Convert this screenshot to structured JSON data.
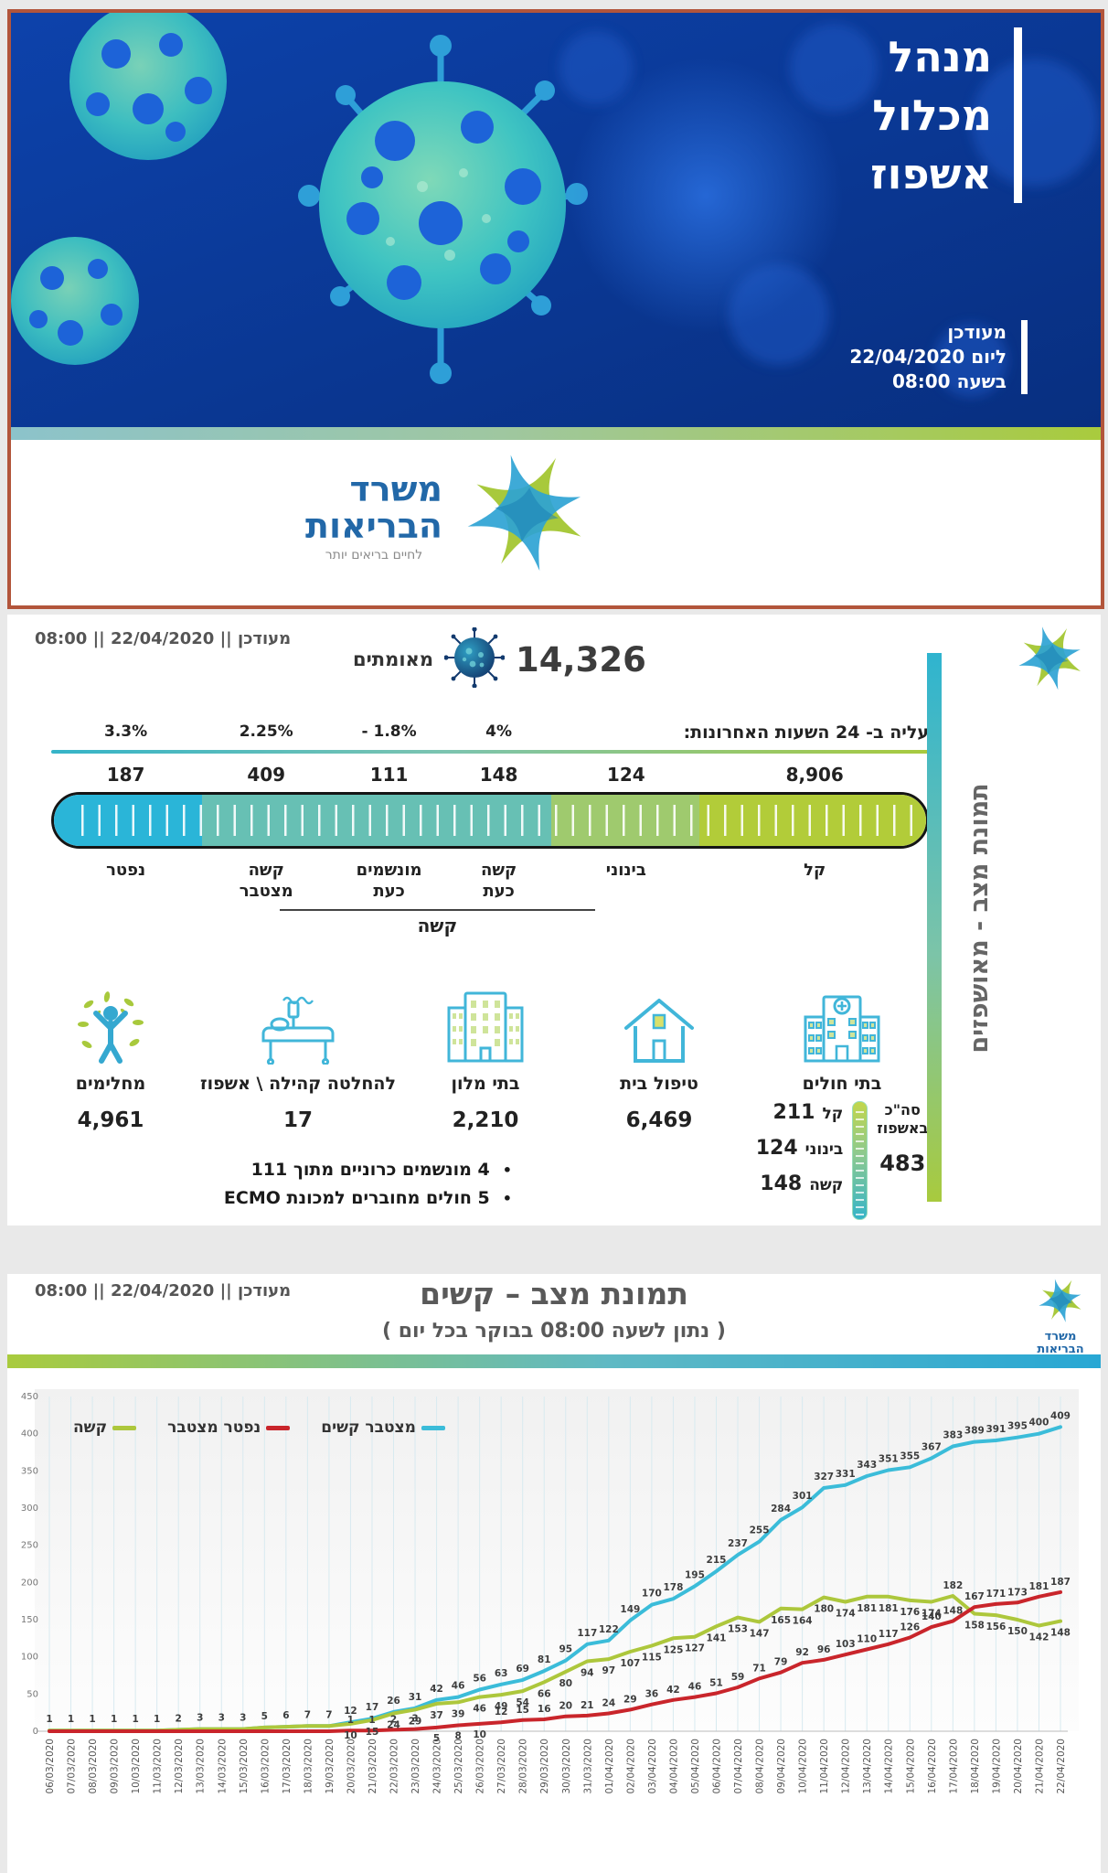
{
  "banner": {
    "title_lines": [
      "מנהל",
      "מכלול",
      "אשפוז"
    ],
    "updated_lines": [
      "מעודכן",
      "ליום 22/04/2020",
      "בשעה 08:00"
    ]
  },
  "ministry_logo": {
    "line1": "משרד",
    "line2": "הבריאות",
    "tagline": "לחיים בריאים יותר"
  },
  "hospitalized_section": {
    "updated_header": "מעודכן || 22/04/2020 || 08:00",
    "sidebar_title": "תמונת מצב - מאושפזים",
    "confirmed": {
      "value": "14,326",
      "label": "מאומתים"
    },
    "rise_label": "עליה ב- 24 השעות האחרונות:",
    "severity_bar": {
      "columns": [
        {
          "pct": "3.3%",
          "value": "187",
          "label": "נפטר",
          "label2": "",
          "color": "#2ab5d8",
          "flex": 17
        },
        {
          "pct": "2.25%",
          "value": "409",
          "label": "קשה",
          "label2": "מצטבר",
          "color": "#67c0b4",
          "flex": 15
        },
        {
          "pct": "- 1.8%",
          "value": "111",
          "label": "מונשמים",
          "label2": "כעת",
          "color": "#67c0b4",
          "flex": 13
        },
        {
          "pct": "4%",
          "value": "148",
          "label": "קשה",
          "label2": "כעת",
          "color": "#67c0b4",
          "flex": 12
        },
        {
          "pct": "",
          "value": "124",
          "label": "בינוני",
          "label2": "",
          "color": "#9fca6e",
          "flex": 17
        },
        {
          "pct": "",
          "value": "8,906",
          "label": "קל",
          "label2": "",
          "color": "#b2cc39",
          "flex": 26
        }
      ],
      "bracket_label": "קשה"
    },
    "facilities": [
      {
        "icon": "recovered-icon",
        "label": "מחלימים",
        "value": "4,961"
      },
      {
        "icon": "hospital-bed-icon",
        "label": "להחלטה קהילה \\ אשפוז",
        "value": "17"
      },
      {
        "icon": "hotel-icon",
        "label": "בתי מלון",
        "value": "2,210"
      },
      {
        "icon": "home-icon",
        "label": "טיפול בית",
        "value": "6,469"
      }
    ],
    "hospitals": {
      "icon": "hospital-icon",
      "label": "בתי חולים",
      "rows": [
        {
          "label": "קל",
          "value": "211"
        },
        {
          "label": "בינוני",
          "value": "124"
        },
        {
          "label": "קשה",
          "value": "148"
        }
      ],
      "total_label_1": "סה\"כ",
      "total_label_2": "באשפוז",
      "total_value": "483"
    },
    "bullets": [
      "4 מונשמים כרוניים מתוך 111",
      "5 חולים מחוברים למכונת ECMO"
    ]
  },
  "severe_section": {
    "updated_header": "מעודכן || 22/04/2020 || 08:00",
    "title": "תמונת מצב – קשים",
    "subtitle": "( נתון לשעה 08:00 בבוקר בכל יום )",
    "chart_data": {
      "type": "line",
      "x": [
        "06/03/2020",
        "07/03/2020",
        "08/03/2020",
        "09/03/2020",
        "10/03/2020",
        "11/03/2020",
        "12/03/2020",
        "13/03/2020",
        "14/03/2020",
        "15/03/2020",
        "16/03/2020",
        "17/03/2020",
        "18/03/2020",
        "19/03/2020",
        "20/03/2020",
        "21/03/2020",
        "22/03/2020",
        "23/03/2020",
        "24/03/2020",
        "25/03/2020",
        "26/03/2020",
        "27/03/2020",
        "28/03/2020",
        "29/03/2020",
        "30/03/2020",
        "31/03/2020",
        "01/04/2020",
        "02/04/2020",
        "03/04/2020",
        "04/04/2020",
        "05/04/2020",
        "06/04/2020",
        "07/04/2020",
        "08/04/2020",
        "09/04/2020",
        "10/04/2020",
        "11/04/2020",
        "12/04/2020",
        "13/04/2020",
        "14/04/2020",
        "15/04/2020",
        "16/04/2020",
        "17/04/2020",
        "18/04/2020",
        "19/04/2020",
        "20/04/2020",
        "21/04/2020",
        "22/04/2020"
      ],
      "series": [
        {
          "name": "מצטבר קשים",
          "color": "#3bbcd9",
          "labels_from": 0,
          "label_dy": -9,
          "values": [
            1,
            1,
            1,
            1,
            1,
            1,
            2,
            3,
            3,
            3,
            5,
            6,
            7,
            7,
            12,
            17,
            26,
            31,
            42,
            46,
            56,
            63,
            69,
            81,
            95,
            117,
            122,
            149,
            170,
            178,
            195,
            215,
            237,
            255,
            284,
            301,
            327,
            331,
            343,
            351,
            355,
            367,
            383,
            389,
            391,
            395,
            400,
            409
          ]
        },
        {
          "name": "קשה",
          "color": "#adc73c",
          "labels_from": 14,
          "label_dy": 16,
          "label_offsets": {
            "42": -8
          },
          "values": [
            1,
            1,
            1,
            1,
            1,
            1,
            2,
            3,
            3,
            3,
            5,
            6,
            7,
            7,
            10,
            15,
            24,
            29,
            37,
            39,
            46,
            49,
            54,
            66,
            80,
            94,
            97,
            107,
            115,
            125,
            127,
            141,
            153,
            147,
            165,
            164,
            180,
            174,
            181,
            181,
            176,
            174,
            182,
            158,
            156,
            150,
            142,
            148
          ]
        },
        {
          "name": "נפטר מצטבר",
          "color": "#c9252b",
          "labels_from": 14,
          "label_dy": -8,
          "label_offsets": {
            "18": 15,
            "19": 15,
            "20": 15
          },
          "values": [
            0,
            0,
            0,
            0,
            0,
            0,
            0,
            0,
            0,
            0,
            0,
            0,
            0,
            0,
            1,
            1,
            2,
            3,
            5,
            8,
            10,
            12,
            15,
            16,
            20,
            21,
            24,
            29,
            36,
            42,
            46,
            51,
            59,
            71,
            79,
            92,
            96,
            103,
            110,
            117,
            126,
            140,
            148,
            167,
            171,
            173,
            181,
            187
          ]
        }
      ],
      "legend_order": [
        "קשה",
        "נפטר מצטבר",
        "מצטבר קשים"
      ],
      "legend_colors": [
        "#adc73c",
        "#c9252b",
        "#3bbcd9"
      ],
      "title": "תמונת מצב – קשים",
      "xlabel": "",
      "ylabel": "",
      "ylim": [
        0,
        450
      ],
      "yticks": [
        0,
        50,
        100,
        150,
        200,
        250,
        300,
        350,
        400,
        450
      ],
      "grid": "vertical",
      "legend_position": "top-left"
    }
  }
}
